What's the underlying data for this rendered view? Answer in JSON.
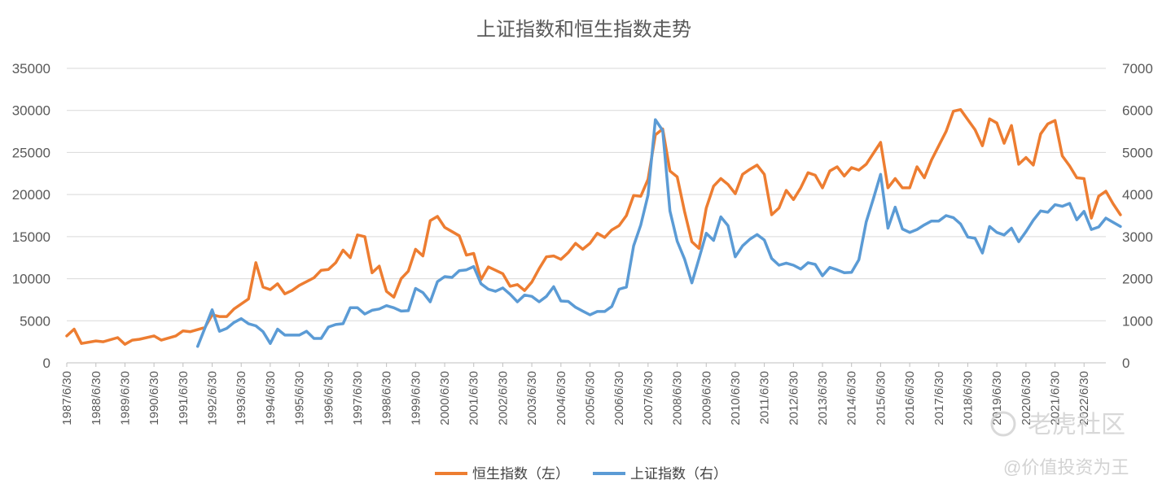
{
  "chart_data": {
    "type": "line",
    "title": "上证指数和恒生指数走势",
    "left_axis": {
      "ylim": [
        0,
        35000
      ],
      "ticks": [
        "0",
        "5000",
        "10000",
        "15000",
        "20000",
        "25000",
        "30000",
        "35000"
      ]
    },
    "right_axis": {
      "ylim": [
        0,
        7000
      ],
      "ticks": [
        "0",
        "1000",
        "2000",
        "3000",
        "4000",
        "5000",
        "6000",
        "7000"
      ]
    },
    "grid": true,
    "legend_position": "bottom",
    "x_tick_labels": [
      "1987/6/30",
      "1988/6/30",
      "1989/6/30",
      "1990/6/30",
      "1991/6/30",
      "1992/6/30",
      "1993/6/30",
      "1994/6/30",
      "1995/6/30",
      "1996/6/30",
      "1997/6/30",
      "1998/6/30",
      "1999/6/30",
      "2000/6/30",
      "2001/6/30",
      "2002/6/30",
      "2003/6/30",
      "2004/6/30",
      "2005/6/30",
      "2006/6/30",
      "2007/6/30",
      "2008/6/30",
      "2009/6/30",
      "2010/6/30",
      "2011/6/30",
      "2012/6/30",
      "2013/6/30",
      "2014/6/30",
      "2015/6/30",
      "2016/6/30",
      "2017/6/30",
      "2018/6/30",
      "2019/6/30",
      "2020/6/30",
      "2021/6/30",
      "2022/6/30"
    ],
    "x_range": [
      "1987-06-30",
      "2023-03-31"
    ],
    "series": [
      {
        "name": "恒生指数（左）",
        "axis": "left",
        "color": "#ED7D31",
        "points": [
          [
            "1987-06-30",
            3200
          ],
          [
            "1987-09-30",
            4000
          ],
          [
            "1987-12-31",
            2300
          ],
          [
            "1988-06-30",
            2600
          ],
          [
            "1988-09-30",
            2500
          ],
          [
            "1989-03-31",
            3000
          ],
          [
            "1989-06-30",
            2200
          ],
          [
            "1989-09-30",
            2700
          ],
          [
            "1989-12-31",
            2800
          ],
          [
            "1990-06-30",
            3200
          ],
          [
            "1990-09-30",
            2700
          ],
          [
            "1991-03-31",
            3200
          ],
          [
            "1991-06-30",
            3800
          ],
          [
            "1991-09-30",
            3700
          ],
          [
            "1992-03-31",
            4200
          ],
          [
            "1992-06-30",
            5700
          ],
          [
            "1992-09-30",
            5500
          ],
          [
            "1992-12-31",
            5500
          ],
          [
            "1993-03-31",
            6400
          ],
          [
            "1993-09-30",
            7600
          ],
          [
            "1993-12-31",
            11900
          ],
          [
            "1994-03-31",
            9000
          ],
          [
            "1994-06-30",
            8700
          ],
          [
            "1994-09-30",
            9400
          ],
          [
            "1994-12-31",
            8200
          ],
          [
            "1995-03-31",
            8600
          ],
          [
            "1995-06-30",
            9200
          ],
          [
            "1995-12-31",
            10100
          ],
          [
            "1996-03-31",
            11000
          ],
          [
            "1996-06-30",
            11100
          ],
          [
            "1996-09-30",
            11900
          ],
          [
            "1996-12-31",
            13400
          ],
          [
            "1997-03-31",
            12500
          ],
          [
            "1997-06-30",
            15200
          ],
          [
            "1997-09-30",
            15000
          ],
          [
            "1997-12-31",
            10700
          ],
          [
            "1998-03-31",
            11500
          ],
          [
            "1998-06-30",
            8500
          ],
          [
            "1998-09-30",
            7800
          ],
          [
            "1998-12-31",
            10000
          ],
          [
            "1999-03-31",
            10900
          ],
          [
            "1999-06-30",
            13500
          ],
          [
            "1999-09-30",
            12700
          ],
          [
            "1999-12-31",
            16900
          ],
          [
            "2000-03-31",
            17400
          ],
          [
            "2000-06-30",
            16100
          ],
          [
            "2000-09-30",
            15600
          ],
          [
            "2000-12-31",
            15100
          ],
          [
            "2001-03-31",
            12800
          ],
          [
            "2001-06-30",
            13000
          ],
          [
            "2001-09-30",
            9900
          ],
          [
            "2001-12-31",
            11400
          ],
          [
            "2002-03-31",
            11000
          ],
          [
            "2002-06-30",
            10600
          ],
          [
            "2002-09-30",
            9100
          ],
          [
            "2002-12-31",
            9300
          ],
          [
            "2003-03-31",
            8600
          ],
          [
            "2003-06-30",
            9600
          ],
          [
            "2003-09-30",
            11200
          ],
          [
            "2003-12-31",
            12600
          ],
          [
            "2004-03-31",
            12700
          ],
          [
            "2004-06-30",
            12300
          ],
          [
            "2004-09-30",
            13100
          ],
          [
            "2004-12-31",
            14200
          ],
          [
            "2005-03-31",
            13500
          ],
          [
            "2005-06-30",
            14200
          ],
          [
            "2005-09-30",
            15400
          ],
          [
            "2005-12-31",
            14900
          ],
          [
            "2006-03-31",
            15800
          ],
          [
            "2006-06-30",
            16300
          ],
          [
            "2006-09-30",
            17500
          ],
          [
            "2006-12-31",
            19900
          ],
          [
            "2007-03-31",
            19800
          ],
          [
            "2007-06-30",
            21800
          ],
          [
            "2007-09-30",
            27100
          ],
          [
            "2007-12-31",
            27800
          ],
          [
            "2008-03-31",
            22800
          ],
          [
            "2008-06-30",
            22100
          ],
          [
            "2008-09-30",
            18000
          ],
          [
            "2008-12-31",
            14400
          ],
          [
            "2009-03-31",
            13600
          ],
          [
            "2009-06-30",
            18400
          ],
          [
            "2009-09-30",
            21000
          ],
          [
            "2009-12-31",
            21900
          ],
          [
            "2010-03-31",
            21200
          ],
          [
            "2010-06-30",
            20100
          ],
          [
            "2010-09-30",
            22400
          ],
          [
            "2010-12-31",
            23000
          ],
          [
            "2011-03-31",
            23500
          ],
          [
            "2011-06-30",
            22400
          ],
          [
            "2011-09-30",
            17600
          ],
          [
            "2011-12-31",
            18400
          ],
          [
            "2012-03-31",
            20500
          ],
          [
            "2012-06-30",
            19400
          ],
          [
            "2012-09-30",
            20800
          ],
          [
            "2012-12-31",
            22600
          ],
          [
            "2013-03-31",
            22300
          ],
          [
            "2013-06-30",
            20800
          ],
          [
            "2013-09-30",
            22800
          ],
          [
            "2013-12-31",
            23300
          ],
          [
            "2014-03-31",
            22200
          ],
          [
            "2014-06-30",
            23200
          ],
          [
            "2014-09-30",
            22900
          ],
          [
            "2014-12-31",
            23600
          ],
          [
            "2015-03-31",
            24900
          ],
          [
            "2015-06-30",
            26200
          ],
          [
            "2015-09-30",
            20800
          ],
          [
            "2015-12-31",
            21900
          ],
          [
            "2016-03-31",
            20800
          ],
          [
            "2016-06-30",
            20800
          ],
          [
            "2016-09-30",
            23300
          ],
          [
            "2016-12-31",
            22000
          ],
          [
            "2017-03-31",
            24100
          ],
          [
            "2017-06-30",
            25800
          ],
          [
            "2017-09-30",
            27500
          ],
          [
            "2017-12-31",
            29900
          ],
          [
            "2018-03-31",
            30100
          ],
          [
            "2018-06-30",
            28900
          ],
          [
            "2018-09-30",
            27700
          ],
          [
            "2018-12-31",
            25800
          ],
          [
            "2019-03-31",
            29000
          ],
          [
            "2019-06-30",
            28500
          ],
          [
            "2019-09-30",
            26100
          ],
          [
            "2019-12-31",
            28200
          ],
          [
            "2020-03-31",
            23600
          ],
          [
            "2020-06-30",
            24400
          ],
          [
            "2020-09-30",
            23500
          ],
          [
            "2020-12-31",
            27200
          ],
          [
            "2021-03-31",
            28400
          ],
          [
            "2021-06-30",
            28800
          ],
          [
            "2021-09-30",
            24600
          ],
          [
            "2021-12-31",
            23400
          ],
          [
            "2022-03-31",
            22000
          ],
          [
            "2022-06-30",
            21900
          ],
          [
            "2022-09-30",
            17200
          ],
          [
            "2022-12-31",
            19800
          ],
          [
            "2023-03-31",
            20400
          ],
          [
            "2023-06-30",
            18900
          ],
          [
            "2023-09-30",
            17600
          ]
        ]
      },
      {
        "name": "上证指数（右）",
        "axis": "right",
        "color": "#5B9BD5",
        "points": [
          [
            "1991-12-31",
            390
          ],
          [
            "1992-06-30",
            1260
          ],
          [
            "1992-09-30",
            750
          ],
          [
            "1992-12-31",
            820
          ],
          [
            "1993-03-31",
            960
          ],
          [
            "1993-06-30",
            1050
          ],
          [
            "1993-09-30",
            930
          ],
          [
            "1993-12-31",
            880
          ],
          [
            "1994-03-31",
            740
          ],
          [
            "1994-06-30",
            460
          ],
          [
            "1994-09-30",
            800
          ],
          [
            "1994-12-31",
            660
          ],
          [
            "1995-03-31",
            660
          ],
          [
            "1995-06-30",
            660
          ],
          [
            "1995-09-30",
            750
          ],
          [
            "1995-12-31",
            580
          ],
          [
            "1996-03-31",
            580
          ],
          [
            "1996-06-30",
            850
          ],
          [
            "1996-09-30",
            910
          ],
          [
            "1996-12-31",
            930
          ],
          [
            "1997-03-31",
            1310
          ],
          [
            "1997-06-30",
            1310
          ],
          [
            "1997-09-30",
            1160
          ],
          [
            "1997-12-31",
            1250
          ],
          [
            "1998-03-31",
            1280
          ],
          [
            "1998-06-30",
            1360
          ],
          [
            "1998-09-30",
            1310
          ],
          [
            "1998-12-31",
            1230
          ],
          [
            "1999-03-31",
            1240
          ],
          [
            "1999-06-30",
            1770
          ],
          [
            "1999-09-30",
            1670
          ],
          [
            "1999-12-31",
            1450
          ],
          [
            "2000-03-31",
            1930
          ],
          [
            "2000-06-30",
            2050
          ],
          [
            "2000-09-30",
            2030
          ],
          [
            "2000-12-31",
            2190
          ],
          [
            "2001-03-31",
            2210
          ],
          [
            "2001-06-30",
            2290
          ],
          [
            "2001-09-30",
            1880
          ],
          [
            "2001-12-31",
            1750
          ],
          [
            "2002-03-31",
            1700
          ],
          [
            "2002-06-30",
            1780
          ],
          [
            "2002-09-30",
            1630
          ],
          [
            "2002-12-31",
            1450
          ],
          [
            "2003-03-31",
            1610
          ],
          [
            "2003-06-30",
            1580
          ],
          [
            "2003-09-30",
            1450
          ],
          [
            "2003-12-31",
            1580
          ],
          [
            "2004-03-31",
            1810
          ],
          [
            "2004-06-30",
            1470
          ],
          [
            "2004-09-30",
            1460
          ],
          [
            "2004-12-31",
            1320
          ],
          [
            "2005-03-31",
            1230
          ],
          [
            "2005-06-30",
            1140
          ],
          [
            "2005-09-30",
            1220
          ],
          [
            "2005-12-31",
            1220
          ],
          [
            "2006-03-31",
            1340
          ],
          [
            "2006-06-30",
            1750
          ],
          [
            "2006-09-30",
            1800
          ],
          [
            "2006-12-31",
            2780
          ],
          [
            "2007-03-31",
            3280
          ],
          [
            "2007-06-30",
            3990
          ],
          [
            "2007-09-30",
            5780
          ],
          [
            "2007-12-31",
            5520
          ],
          [
            "2008-03-31",
            3610
          ],
          [
            "2008-06-30",
            2890
          ],
          [
            "2008-09-30",
            2470
          ],
          [
            "2008-12-31",
            1900
          ],
          [
            "2009-03-31",
            2480
          ],
          [
            "2009-06-30",
            3080
          ],
          [
            "2009-09-30",
            2910
          ],
          [
            "2009-12-31",
            3470
          ],
          [
            "2010-03-31",
            3260
          ],
          [
            "2010-06-30",
            2520
          ],
          [
            "2010-09-30",
            2780
          ],
          [
            "2010-12-31",
            2940
          ],
          [
            "2011-03-31",
            3050
          ],
          [
            "2011-06-30",
            2920
          ],
          [
            "2011-09-30",
            2480
          ],
          [
            "2011-12-31",
            2320
          ],
          [
            "2012-03-31",
            2370
          ],
          [
            "2012-06-30",
            2320
          ],
          [
            "2012-09-30",
            2230
          ],
          [
            "2012-12-31",
            2380
          ],
          [
            "2013-03-31",
            2340
          ],
          [
            "2013-06-30",
            2070
          ],
          [
            "2013-09-30",
            2270
          ],
          [
            "2013-12-31",
            2210
          ],
          [
            "2014-03-31",
            2140
          ],
          [
            "2014-06-30",
            2150
          ],
          [
            "2014-09-30",
            2450
          ],
          [
            "2014-12-31",
            3350
          ],
          [
            "2015-03-31",
            3900
          ],
          [
            "2015-06-30",
            4480
          ],
          [
            "2015-09-30",
            3200
          ],
          [
            "2015-12-31",
            3700
          ],
          [
            "2016-03-31",
            3180
          ],
          [
            "2016-06-30",
            3100
          ],
          [
            "2016-09-30",
            3170
          ],
          [
            "2016-12-31",
            3280
          ],
          [
            "2017-03-31",
            3370
          ],
          [
            "2017-06-30",
            3370
          ],
          [
            "2017-09-30",
            3500
          ],
          [
            "2017-12-31",
            3450
          ],
          [
            "2018-03-31",
            3300
          ],
          [
            "2018-06-30",
            2990
          ],
          [
            "2018-09-30",
            2960
          ],
          [
            "2018-12-31",
            2610
          ],
          [
            "2019-03-31",
            3240
          ],
          [
            "2019-06-30",
            3100
          ],
          [
            "2019-09-30",
            3040
          ],
          [
            "2019-12-31",
            3200
          ],
          [
            "2020-03-31",
            2880
          ],
          [
            "2020-06-30",
            3120
          ],
          [
            "2020-09-30",
            3390
          ],
          [
            "2020-12-31",
            3610
          ],
          [
            "2021-03-31",
            3580
          ],
          [
            "2021-06-30",
            3760
          ],
          [
            "2021-09-30",
            3720
          ],
          [
            "2021-12-31",
            3790
          ],
          [
            "2022-03-31",
            3400
          ],
          [
            "2022-06-30",
            3600
          ],
          [
            "2022-09-30",
            3170
          ],
          [
            "2022-12-31",
            3230
          ],
          [
            "2023-03-31",
            3440
          ],
          [
            "2023-06-30",
            3340
          ],
          [
            "2023-09-30",
            3240
          ]
        ]
      }
    ]
  },
  "watermark": {
    "brand": "老虎社区",
    "handle": "@价值投资为王"
  }
}
